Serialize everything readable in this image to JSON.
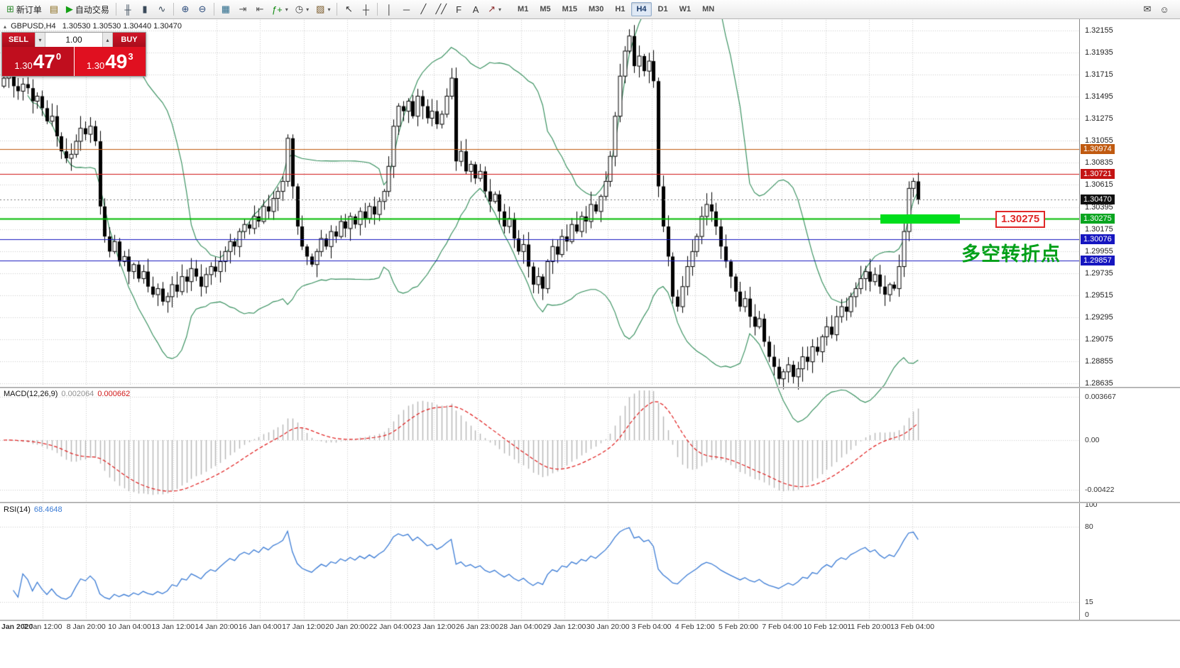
{
  "icons": {
    "volume_down": "▾",
    "volume_up": "▴",
    "collapse": "▴",
    "dropdown": "▾"
  },
  "toolbar": {
    "items": [
      {
        "name": "new-order-button",
        "glyph": "⊞",
        "glyph_color": "#2e8b2e",
        "label": "新订单"
      },
      {
        "name": "chart-window-button",
        "glyph": "▤",
        "glyph_color": "#8a6d1f"
      },
      {
        "name": "autotrading-button",
        "glyph": "▶",
        "glyph_color": "#14a014",
        "label": "自动交易"
      },
      {
        "sep": true
      },
      {
        "name": "bar-chart-button",
        "glyph": "╫",
        "glyph_color": "#3a4a5a"
      },
      {
        "name": "candlestick-chart-button",
        "glyph": "▮",
        "glyph_color": "#3a4a5a"
      },
      {
        "name": "line-chart-button",
        "glyph": "∿",
        "glyph_color": "#3a4a5a"
      },
      {
        "sep": true
      },
      {
        "name": "zoom-in-button",
        "glyph": "⊕",
        "glyph_color": "#2a4a7a"
      },
      {
        "name": "zoom-out-button",
        "glyph": "⊖",
        "glyph_color": "#2a4a7a"
      },
      {
        "sep": true
      },
      {
        "name": "tile-windows-button",
        "glyph": "▦",
        "glyph_color": "#2a6a8a"
      },
      {
        "name": "auto-scroll-button",
        "glyph": "⇥",
        "glyph_color": "#555555"
      },
      {
        "name": "chart-shift-button",
        "glyph": "⇤",
        "glyph_color": "#555555"
      },
      {
        "name": "indicators-button",
        "glyph": "ƒ+",
        "glyph_color": "#108a10",
        "caret": true
      },
      {
        "name": "periods-button",
        "glyph": "◷",
        "glyph_color": "#444444",
        "caret": true
      },
      {
        "name": "templates-button",
        "glyph": "▨",
        "glyph_color": "#7a5a2a",
        "caret": true
      },
      {
        "sep": true
      },
      {
        "name": "cursor-button",
        "glyph": "↖",
        "glyph_color": "#333333"
      },
      {
        "name": "crosshair-button",
        "glyph": "┼",
        "glyph_color": "#333333"
      },
      {
        "sep": true
      },
      {
        "name": "vertical-line-button",
        "glyph": "│",
        "glyph_color": "#333333"
      },
      {
        "name": "horizontal-line-button",
        "glyph": "─",
        "glyph_color": "#333333"
      },
      {
        "name": "trendline-button",
        "glyph": "╱",
        "glyph_color": "#333333"
      },
      {
        "name": "channel-button",
        "glyph": "╱╱",
        "glyph_color": "#333333"
      },
      {
        "name": "fibonacci-button",
        "glyph": "F",
        "glyph_color": "#333333"
      },
      {
        "name": "text-tool-button",
        "glyph": "A",
        "glyph_color": "#333333"
      },
      {
        "name": "arrows-tool-button",
        "glyph": "↗",
        "glyph_color": "#8a2a2a",
        "caret": true
      }
    ],
    "timeframes": [
      "M1",
      "M5",
      "M15",
      "M30",
      "H1",
      "H4",
      "D1",
      "W1",
      "MN"
    ],
    "active_timeframe": "H4",
    "right_icons": [
      {
        "name": "chat-icon",
        "glyph": "✉"
      },
      {
        "name": "community-icon",
        "glyph": "☺"
      }
    ]
  },
  "trade_panel": {
    "sell_label": "SELL",
    "buy_label": "BUY",
    "volume": "1.00",
    "sell": {
      "prefix": "1.30",
      "big": "47",
      "sup": "0"
    },
    "buy": {
      "prefix": "1.30",
      "big": "49",
      "sup": "3"
    }
  },
  "chart_header": {
    "symbol": "GBPUSD,H4",
    "ohlc": "1.30530 1.30530 1.30440 1.30470"
  },
  "macd_panel": {
    "name": "MACD(12,26,9)",
    "value1": "0.002064",
    "value2": "0.000662",
    "axis": [
      {
        "text": "0.003667",
        "value": 0.003667
      },
      {
        "text": "0.00",
        "value": 0
      },
      {
        "text": "-0.00422",
        "value": -0.00422
      }
    ]
  },
  "rsi_panel": {
    "name": "RSI(14)",
    "value": "68.4648",
    "axis": [
      {
        "text": "100",
        "value": 100
      },
      {
        "text": "80",
        "value": 80
      },
      {
        "text": "15",
        "value": 15
      },
      {
        "text": "0",
        "value": 0
      }
    ]
  },
  "price_axis": {
    "labels": [
      "1.32155",
      "1.31935",
      "1.31715",
      "1.31495",
      "1.31275",
      "1.31055",
      "1.30835",
      "1.30615",
      "1.30395",
      "1.30175",
      "1.29955",
      "1.29735",
      "1.29515",
      "1.29295",
      "1.29075",
      "1.28855",
      "1.28635"
    ],
    "badges": [
      {
        "text": "1.30974",
        "bg": "#c05a10",
        "price": 1.30974
      },
      {
        "text": "1.30721",
        "bg": "#c41414",
        "price": 1.30721
      },
      {
        "text": "1.30470",
        "bg": "#101010",
        "price": 1.3047
      },
      {
        "text": "1.30275",
        "bg": "#0aa520",
        "price": 1.30275
      },
      {
        "text": "1.30076",
        "bg": "#1616c0",
        "price": 1.30076
      },
      {
        "text": "1.29857",
        "bg": "#1616c0",
        "price": 1.29857
      }
    ]
  },
  "time_axis": {
    "labels": [
      "Jan 2020",
      "7 Jan 12:00",
      "8 Jan 20:00",
      "10 Jan 04:00",
      "13 Jan 12:00",
      "14 Jan 20:00",
      "16 Jan 04:00",
      "17 Jan 12:00",
      "20 Jan 20:00",
      "22 Jan 04:00",
      "23 Jan 12:00",
      "26 Jan 23:00",
      "28 Jan 04:00",
      "29 Jan 12:00",
      "30 Jan 20:00",
      "3 Feb 04:00",
      "4 Feb 12:00",
      "5 Feb 20:00",
      "7 Feb 04:00",
      "10 Feb 12:00",
      "11 Feb 20:00",
      "13 Feb 04:00"
    ]
  },
  "annotations": {
    "price_tag": "1.30275",
    "turning_point_text": "多空转折点",
    "highlight_zone_price": 1.30275
  },
  "chart_data": {
    "type": "candlestick",
    "symbol": "GBPUSD",
    "timeframe": "H4",
    "price_range": {
      "top": 1.32262,
      "bottom": 1.28607
    },
    "first_open": 1.316,
    "closes": [
      1.3168,
      1.3172,
      1.316,
      1.3155,
      1.3162,
      1.3158,
      1.3145,
      1.315,
      1.3138,
      1.3125,
      1.313,
      1.311,
      1.3095,
      1.3088,
      1.3092,
      1.3105,
      1.3118,
      1.3112,
      1.312,
      1.3105,
      1.304,
      1.301,
      1.2995,
      1.3005,
      1.2985,
      1.299,
      1.2975,
      1.2982,
      1.2968,
      1.2975,
      1.296,
      1.2952,
      1.2958,
      1.2945,
      1.295,
      1.2962,
      1.2955,
      1.297,
      1.2965,
      1.2978,
      1.297,
      1.296,
      1.2972,
      1.298,
      1.2975,
      1.2985,
      1.2995,
      1.3005,
      1.3,
      1.3015,
      1.3022,
      1.3018,
      1.303,
      1.3025,
      1.304,
      1.3035,
      1.3048,
      1.3055,
      1.3065,
      1.3108,
      1.306,
      1.302,
      1.3,
      1.299,
      1.2982,
      1.2995,
      1.3008,
      1.3,
      1.3015,
      1.301,
      1.3025,
      1.3018,
      1.303,
      1.3022,
      1.3035,
      1.3028,
      1.304,
      1.3032,
      1.3045,
      1.3055,
      1.308,
      1.312,
      1.314,
      1.3135,
      1.3145,
      1.313,
      1.315,
      1.314,
      1.3128,
      1.3135,
      1.3122,
      1.3132,
      1.315,
      1.3168,
      1.3085,
      1.3095,
      1.3075,
      1.3082,
      1.3068,
      1.3075,
      1.3055,
      1.3045,
      1.3052,
      1.3035,
      1.302,
      1.3028,
      1.3008,
      1.2995,
      1.3002,
      1.298,
      1.2962,
      1.297,
      1.2958,
      1.2985,
      1.3,
      1.2992,
      1.301,
      1.3005,
      1.3022,
      1.3015,
      1.303,
      1.3025,
      1.3042,
      1.3035,
      1.305,
      1.3065,
      1.309,
      1.313,
      1.317,
      1.3195,
      1.321,
      1.318,
      1.319,
      1.3175,
      1.3185,
      1.3165,
      1.306,
      1.302,
      1.299,
      1.295,
      1.294,
      1.296,
      1.298,
      1.2995,
      1.301,
      1.303,
      1.3042,
      1.3035,
      1.302,
      1.3,
      1.2985,
      1.297,
      1.2955,
      1.294,
      1.2948,
      1.293,
      1.292,
      1.2928,
      1.2905,
      1.289,
      1.288,
      1.2868,
      1.2875,
      1.2882,
      1.287,
      1.2878,
      1.289,
      1.2885,
      1.29,
      1.2895,
      1.291,
      1.292,
      1.2912,
      1.293,
      1.294,
      1.2935,
      1.295,
      1.2958,
      1.2968,
      1.2975,
      1.2965,
      1.2972,
      1.296,
      1.2952,
      1.2962,
      1.2958,
      1.298,
      1.3015,
      1.3058,
      1.3065,
      1.3047
    ],
    "last_price": 1.3047,
    "hlines": [
      {
        "price": 1.30974,
        "color": "#c05a10",
        "width": 1
      },
      {
        "price": 1.30721,
        "color": "#d01414",
        "width": 1
      },
      {
        "price": 1.30275,
        "color": "#00bb00",
        "width": 2
      },
      {
        "price": 1.30076,
        "color": "#1616c0",
        "width": 1
      },
      {
        "price": 1.29857,
        "color": "#1616c0",
        "width": 1
      }
    ],
    "indicators": {
      "bollinger": {
        "period": 20,
        "deviation": 2
      },
      "macd": {
        "fast": 12,
        "slow": 26,
        "signal": 9,
        "current_main": 0.002064,
        "current_signal": 0.000662
      },
      "rsi": {
        "period": 14,
        "current": 68.4648
      }
    },
    "colors": {
      "bb": "#2e8b57",
      "candle": "#000000",
      "macd_hist": "#b6b6b6",
      "macd_signal": "#e01818",
      "rsi": "#3a7bd5",
      "grid": "#cccccc"
    }
  }
}
